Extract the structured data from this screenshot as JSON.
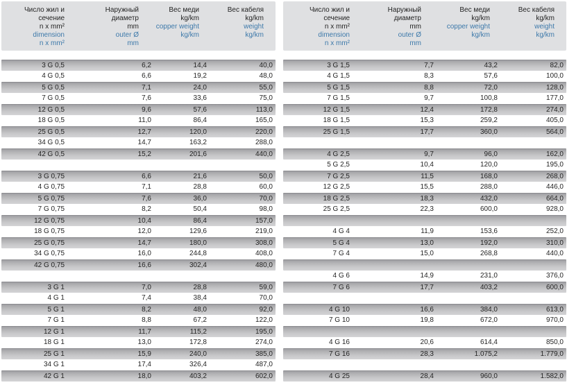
{
  "colors": {
    "header_bg": "#dfe0e2",
    "accent_blue": "#3d79aa",
    "text_dark": "#242424",
    "row_shaded_top": "#a0a0a4",
    "row_shaded_bottom": "#d4d4d6",
    "row_border": "#8b8b8f",
    "page_bg": "#ffffff"
  },
  "header": {
    "columns": [
      {
        "id": "dimension",
        "ru": [
          "Число жил и",
          "сечение",
          "n x mm²"
        ],
        "en": [
          "dimension",
          "n x mm²"
        ]
      },
      {
        "id": "outer-diameter",
        "ru": [
          "Наружный",
          "диаметр",
          "mm"
        ],
        "en": [
          "outer Ø",
          "mm"
        ]
      },
      {
        "id": "copper-weight",
        "ru": [
          "Вес меди",
          "kg/km"
        ],
        "en": [
          "copper weight",
          "kg/km"
        ]
      },
      {
        "id": "cable-weight",
        "ru": [
          "Вес кабеля",
          "kg/km"
        ],
        "en": [
          "weight",
          "kg/km"
        ]
      }
    ]
  },
  "tables": [
    {
      "id": "left",
      "rows": [
        [
          "3 G 0,5",
          "6,2",
          "14,4",
          "40,0"
        ],
        [
          "4 G 0,5",
          "6,6",
          "19,2",
          "48,0"
        ],
        [
          "5 G 0,5",
          "7,1",
          "24,0",
          "55,0"
        ],
        [
          "7 G 0,5",
          "7,6",
          "33,6",
          "75,0"
        ],
        [
          "12 G 0,5",
          "9,6",
          "57,6",
          "113,0"
        ],
        [
          "18 G 0,5",
          "11,0",
          "86,4",
          "165,0"
        ],
        [
          "25 G 0,5",
          "12,7",
          "120,0",
          "220,0"
        ],
        [
          "34 G 0,5",
          "14,7",
          "163,2",
          "288,0"
        ],
        [
          "42 G 0,5",
          "15,2",
          "201,6",
          "440,0"
        ],
        null,
        [
          "3 G 0,75",
          "6,6",
          "21,6",
          "50,0"
        ],
        [
          "4 G 0,75",
          "7,1",
          "28,8",
          "60,0"
        ],
        [
          "5 G 0,75",
          "7,6",
          "36,0",
          "70,0"
        ],
        [
          "7 G 0,75",
          "8,2",
          "50,4",
          "98,0"
        ],
        [
          "12 G 0,75",
          "10,4",
          "86,4",
          "157,0"
        ],
        [
          "18 G 0,75",
          "12,0",
          "129,6",
          "219,0"
        ],
        [
          "25 G 0,75",
          "14,7",
          "180,0",
          "308,0"
        ],
        [
          "34 G 0,75",
          "16,0",
          "244,8",
          "408,0"
        ],
        [
          "42 G 0,75",
          "16,6",
          "302,4",
          "480,0"
        ],
        null,
        [
          "3 G 1",
          "7,0",
          "28,8",
          "59,0"
        ],
        [
          "4 G 1",
          "7,4",
          "38,4",
          "70,0"
        ],
        [
          "5 G 1",
          "8,2",
          "48,0",
          "92,0"
        ],
        [
          "7 G 1",
          "8,8",
          "67,2",
          "122,0"
        ],
        [
          "12 G 1",
          "11,7",
          "115,2",
          "195,0"
        ],
        [
          "18 G 1",
          "13,0",
          "172,8",
          "274,0"
        ],
        [
          "25 G 1",
          "15,9",
          "240,0",
          "385,0"
        ],
        [
          "34 G 1",
          "17,4",
          "326,4",
          "487,0"
        ],
        [
          "42 G 1",
          "18,0",
          "403,2",
          "602,0"
        ]
      ]
    },
    {
      "id": "right",
      "rows": [
        [
          "3 G 1,5",
          "7,7",
          "43,2",
          "82,0"
        ],
        [
          "4 G 1,5",
          "8,3",
          "57,6",
          "100,0"
        ],
        [
          "5 G 1,5",
          "8,8",
          "72,0",
          "128,0"
        ],
        [
          "7 G 1,5",
          "9,7",
          "100,8",
          "177,0"
        ],
        [
          "12 G 1,5",
          "12,4",
          "172,8",
          "274,0"
        ],
        [
          "18 G 1,5",
          "15,3",
          "259,2",
          "405,0"
        ],
        [
          "25 G 1,5",
          "17,7",
          "360,0",
          "564,0"
        ],
        null,
        [
          "4 G 2,5",
          "9,7",
          "96,0",
          "162,0"
        ],
        [
          "5 G 2,5",
          "10,4",
          "120,0",
          "195,0"
        ],
        [
          "7 G 2,5",
          "11,5",
          "168,0",
          "268,0"
        ],
        [
          "12 G 2,5",
          "15,5",
          "288,0",
          "446,0"
        ],
        [
          "18 G 2,5",
          "18,3",
          "432,0",
          "664,0"
        ],
        [
          "25 G 2,5",
          "22,3",
          "600,0",
          "928,0"
        ],
        null,
        [
          "4 G 4",
          "11,9",
          "153,6",
          "252,0"
        ],
        [
          "5 G 4",
          "13,0",
          "192,0",
          "310,0"
        ],
        [
          "7 G 4",
          "15,0",
          "268,8",
          "440,0"
        ],
        null,
        [
          "4 G 6",
          "14,9",
          "231,0",
          "376,0"
        ],
        [
          "7 G 6",
          "17,7",
          "403,2",
          "600,0"
        ],
        null,
        [
          "4 G 10",
          "16,6",
          "384,0",
          "613,0"
        ],
        [
          "7 G 10",
          "19,8",
          "672,0",
          "970,0"
        ],
        null,
        [
          "4 G 16",
          "20,6",
          "614,4",
          "850,0"
        ],
        [
          "7 G 16",
          "28,3",
          "1.075,2",
          "1.779,0"
        ],
        null,
        [
          "4 G 25",
          "28,4",
          "960,0",
          "1.582,0"
        ]
      ]
    }
  ]
}
